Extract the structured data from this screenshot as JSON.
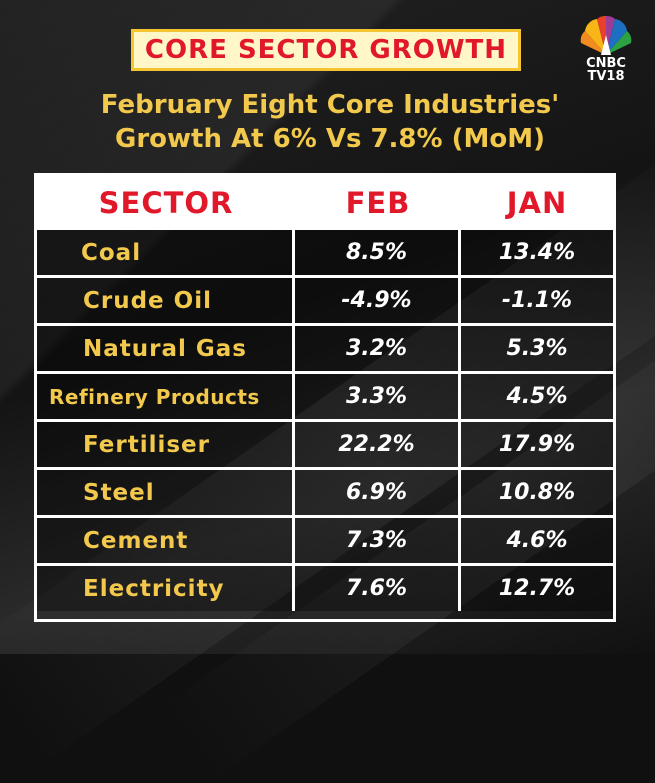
{
  "header": {
    "tag": "CORE SECTOR GROWTH",
    "subtitle_line1": "February Eight Core Industries'",
    "subtitle_line2": "Growth At 6% Vs 7.8% (MoM)"
  },
  "logo": {
    "line1": "CNBC",
    "line2": "TV18"
  },
  "table": {
    "columns": [
      "SECTOR",
      "FEB",
      "JAN"
    ],
    "rows": [
      {
        "sector": "Coal",
        "feb": "8.5%",
        "jan": "13.4%"
      },
      {
        "sector": "Crude Oil",
        "feb": "-4.9%",
        "jan": "-1.1%"
      },
      {
        "sector": "Natural Gas",
        "feb": "3.2%",
        "jan": "5.3%"
      },
      {
        "sector": "Refinery Products",
        "feb": "3.3%",
        "jan": "4.5%"
      },
      {
        "sector": "Fertiliser",
        "feb": "22.2%",
        "jan": "17.9%"
      },
      {
        "sector": "Steel",
        "feb": "6.9%",
        "jan": "10.8%"
      },
      {
        "sector": "Cement",
        "feb": "7.3%",
        "jan": "4.6%"
      },
      {
        "sector": "Electricity",
        "feb": "7.6%",
        "jan": "12.7%"
      }
    ]
  },
  "colors": {
    "accent_red": "#e0182a",
    "accent_yellow": "#f2c94c",
    "border_gold": "#f4c431",
    "background": "#101010"
  }
}
